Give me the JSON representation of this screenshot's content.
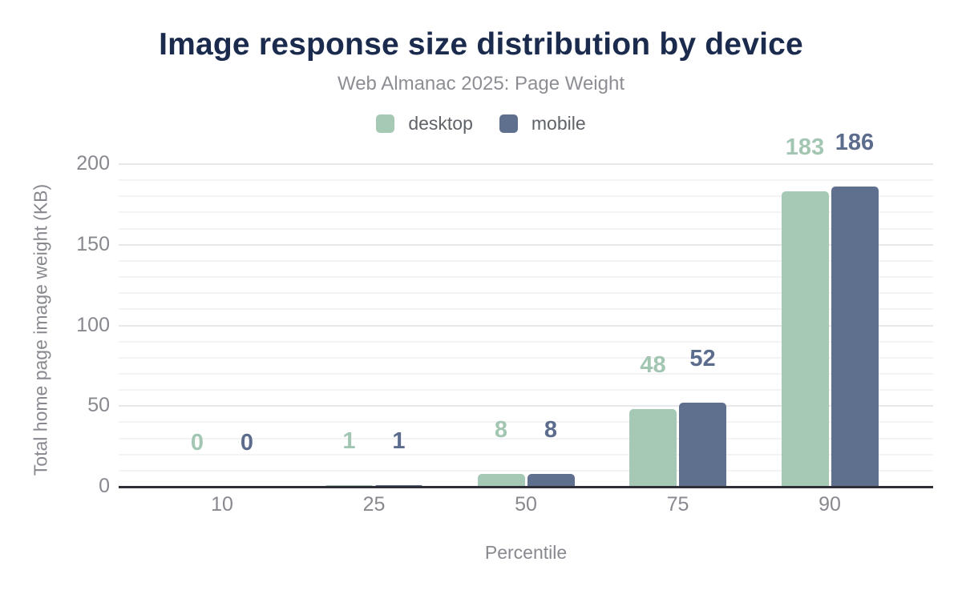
{
  "title": "Image response size distribution by device",
  "subtitle": "Web Almanac 2025: Page Weight",
  "colors": {
    "title": "#1b2b4d",
    "subtitle_text": "#8c8e93",
    "axis_text": "#87898f",
    "legend_text": "#5f6368",
    "axis_line": "#2f3037",
    "grid_minor": "#f3f3f5",
    "grid_major": "#e8e8ea",
    "desktop": "#a6c9b6",
    "mobile": "#5f6f8e",
    "desktop_label": "#a3c6b3",
    "mobile_label": "#5c6c8c"
  },
  "chart_data": {
    "type": "bar",
    "title": "Image response size distribution by device",
    "subtitle": "Web Almanac 2025: Page Weight",
    "categories": [
      "10",
      "25",
      "50",
      "75",
      "90"
    ],
    "series": [
      {
        "name": "desktop",
        "color": "#a6c9b6",
        "label_color": "#a3c6b3",
        "values": [
          0,
          1,
          8,
          48,
          183
        ]
      },
      {
        "name": "mobile",
        "color": "#5f6f8e",
        "label_color": "#5c6c8c",
        "values": [
          0,
          1,
          8,
          52,
          186
        ]
      }
    ],
    "xlabel": "Percentile",
    "ylabel": "Total home page image weight (KB)",
    "ylim": [
      0,
      200
    ],
    "yticks": [
      0,
      50,
      100,
      150,
      200
    ],
    "grid_minor_step": 10,
    "grid_major_step": 50,
    "grid": "on",
    "legend_position": "top",
    "data_labels": "above-bars"
  }
}
